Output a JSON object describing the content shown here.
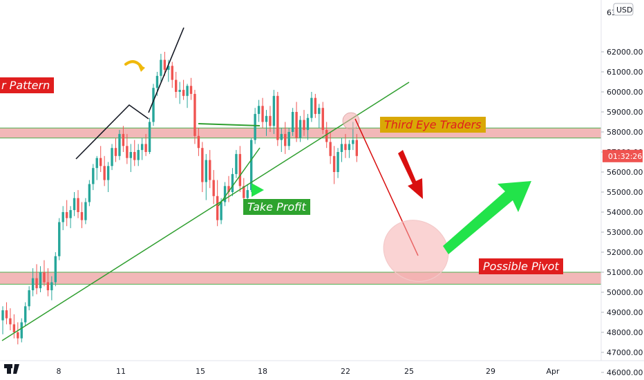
{
  "chart_data": {
    "type": "candlestick",
    "currency_badge": "USD",
    "price_axis": {
      "range": [
        45600,
        63500
      ],
      "ticks": [
        46000,
        47000,
        48000,
        49000,
        50000,
        51000,
        52000,
        53000,
        54000,
        55000,
        56000,
        57000,
        58000,
        59000,
        60000,
        61000,
        62000
      ],
      "tick_labels": [
        "46000.00",
        "47000.00",
        "48000.00",
        "49000.00",
        "50000.00",
        "51000.00",
        "52000.00",
        "53000.00",
        "54000.00",
        "55000.00",
        "56000.00",
        "57000.00",
        "58000.00",
        "59000.00",
        "60000.00",
        "61000.00",
        "62000.00"
      ],
      "top_partial_label": "63",
      "current_price_countdown": "01:32:26",
      "current_price": 56800
    },
    "time_axis": {
      "tick_labels": [
        "8",
        "11",
        "15",
        "18",
        "22",
        "25",
        "29",
        "Apr"
      ]
    },
    "colors": {
      "up": "#26a69a",
      "down": "#ef5350",
      "zone_fill": "#f2b8b8",
      "zone_border": "#4caf50",
      "trendline": "#2e9e2e",
      "label_red": "#e01e1e",
      "label_gold": "#d9a806",
      "label_green": "#2ea32e",
      "arrow_green": "#22e34a",
      "arrow_red": "#d90f0f"
    },
    "zones": [
      {
        "name": "resistance-zone",
        "low": 57700,
        "high": 58200
      },
      {
        "name": "support-zone",
        "low": 50400,
        "high": 51000
      }
    ],
    "annotations": {
      "pattern_label": "r Pattern",
      "brand_label": "Third Eye Traders",
      "take_profit_label": "Take Profit",
      "pivot_label": "Possible Pivot"
    },
    "candles": [
      {
        "o": 48600,
        "h": 49300,
        "l": 47900,
        "c": 49100
      },
      {
        "o": 49100,
        "h": 49500,
        "l": 48400,
        "c": 48700
      },
      {
        "o": 48700,
        "h": 49200,
        "l": 48100,
        "c": 48400
      },
      {
        "o": 48400,
        "h": 48900,
        "l": 47700,
        "c": 48000
      },
      {
        "o": 48000,
        "h": 48500,
        "l": 47400,
        "c": 47700
      },
      {
        "o": 47700,
        "h": 48700,
        "l": 47500,
        "c": 48500
      },
      {
        "o": 48500,
        "h": 49500,
        "l": 48300,
        "c": 49300
      },
      {
        "o": 49300,
        "h": 50300,
        "l": 49100,
        "c": 50100
      },
      {
        "o": 50100,
        "h": 51200,
        "l": 49800,
        "c": 50700
      },
      {
        "o": 50700,
        "h": 51400,
        "l": 49900,
        "c": 50200
      },
      {
        "o": 50200,
        "h": 51300,
        "l": 50000,
        "c": 51000
      },
      {
        "o": 51000,
        "h": 51600,
        "l": 50300,
        "c": 50500
      },
      {
        "o": 50500,
        "h": 51200,
        "l": 49800,
        "c": 50100
      },
      {
        "o": 50100,
        "h": 50800,
        "l": 49600,
        "c": 50500
      },
      {
        "o": 50500,
        "h": 52000,
        "l": 50300,
        "c": 51800
      },
      {
        "o": 51800,
        "h": 53700,
        "l": 51600,
        "c": 53500
      },
      {
        "o": 53500,
        "h": 54300,
        "l": 53100,
        "c": 54000
      },
      {
        "o": 54000,
        "h": 54600,
        "l": 53300,
        "c": 53700
      },
      {
        "o": 53700,
        "h": 54300,
        "l": 53200,
        "c": 54100
      },
      {
        "o": 54100,
        "h": 55000,
        "l": 53800,
        "c": 54700
      },
      {
        "o": 54700,
        "h": 55100,
        "l": 53700,
        "c": 54000
      },
      {
        "o": 54000,
        "h": 54500,
        "l": 53200,
        "c": 53600
      },
      {
        "o": 53600,
        "h": 54700,
        "l": 53400,
        "c": 54500
      },
      {
        "o": 54500,
        "h": 55600,
        "l": 54300,
        "c": 55400
      },
      {
        "o": 55400,
        "h": 56400,
        "l": 55100,
        "c": 56200
      },
      {
        "o": 56200,
        "h": 56800,
        "l": 55600,
        "c": 56700
      },
      {
        "o": 56700,
        "h": 57300,
        "l": 56000,
        "c": 56300
      },
      {
        "o": 56300,
        "h": 56800,
        "l": 55300,
        "c": 55600
      },
      {
        "o": 55600,
        "h": 56500,
        "l": 55000,
        "c": 56300
      },
      {
        "o": 56300,
        "h": 57400,
        "l": 56100,
        "c": 57200
      },
      {
        "o": 57200,
        "h": 57700,
        "l": 56500,
        "c": 56800
      },
      {
        "o": 56800,
        "h": 58100,
        "l": 56600,
        "c": 57900
      },
      {
        "o": 57900,
        "h": 58300,
        "l": 57000,
        "c": 57300
      },
      {
        "o": 57300,
        "h": 57900,
        "l": 56400,
        "c": 56700
      },
      {
        "o": 56700,
        "h": 57400,
        "l": 56000,
        "c": 57000
      },
      {
        "o": 57000,
        "h": 57600,
        "l": 56300,
        "c": 56600
      },
      {
        "o": 56600,
        "h": 57400,
        "l": 56300,
        "c": 57100
      },
      {
        "o": 57100,
        "h": 57700,
        "l": 56600,
        "c": 57400
      },
      {
        "o": 57400,
        "h": 57900,
        "l": 56800,
        "c": 57000
      },
      {
        "o": 57000,
        "h": 58700,
        "l": 56900,
        "c": 58500
      },
      {
        "o": 58500,
        "h": 60400,
        "l": 58300,
        "c": 60200
      },
      {
        "o": 60200,
        "h": 61000,
        "l": 59800,
        "c": 60800
      },
      {
        "o": 60800,
        "h": 61900,
        "l": 60500,
        "c": 61600
      },
      {
        "o": 61600,
        "h": 62000,
        "l": 60800,
        "c": 61100
      },
      {
        "o": 61100,
        "h": 61600,
        "l": 60500,
        "c": 61300
      },
      {
        "o": 61300,
        "h": 61500,
        "l": 60200,
        "c": 60600
      },
      {
        "o": 60600,
        "h": 61000,
        "l": 59700,
        "c": 60000
      },
      {
        "o": 60000,
        "h": 60500,
        "l": 59400,
        "c": 60100
      },
      {
        "o": 60100,
        "h": 60600,
        "l": 59600,
        "c": 59800
      },
      {
        "o": 59800,
        "h": 60400,
        "l": 59200,
        "c": 60300
      },
      {
        "o": 60300,
        "h": 60700,
        "l": 59600,
        "c": 59900
      },
      {
        "o": 59900,
        "h": 60100,
        "l": 57400,
        "c": 57800
      },
      {
        "o": 57800,
        "h": 58200,
        "l": 56800,
        "c": 57200
      },
      {
        "o": 57200,
        "h": 57500,
        "l": 55000,
        "c": 55500
      },
      {
        "o": 55500,
        "h": 56900,
        "l": 54600,
        "c": 56600
      },
      {
        "o": 56600,
        "h": 57100,
        "l": 55200,
        "c": 55600
      },
      {
        "o": 55600,
        "h": 56100,
        "l": 54400,
        "c": 54800
      },
      {
        "o": 54800,
        "h": 55600,
        "l": 53300,
        "c": 53600
      },
      {
        "o": 53600,
        "h": 54700,
        "l": 53400,
        "c": 54500
      },
      {
        "o": 54500,
        "h": 55500,
        "l": 54300,
        "c": 55300
      },
      {
        "o": 55300,
        "h": 55800,
        "l": 54500,
        "c": 55000
      },
      {
        "o": 55000,
        "h": 56200,
        "l": 54800,
        "c": 55900
      },
      {
        "o": 55900,
        "h": 57100,
        "l": 55700,
        "c": 56900
      },
      {
        "o": 56900,
        "h": 57300,
        "l": 55000,
        "c": 55300
      },
      {
        "o": 55300,
        "h": 55700,
        "l": 54300,
        "c": 54700
      },
      {
        "o": 54700,
        "h": 55400,
        "l": 54200,
        "c": 55100
      },
      {
        "o": 55100,
        "h": 57700,
        "l": 55000,
        "c": 57600
      },
      {
        "o": 57600,
        "h": 59200,
        "l": 57400,
        "c": 58900
      },
      {
        "o": 58900,
        "h": 59600,
        "l": 58500,
        "c": 59300
      },
      {
        "o": 59300,
        "h": 59700,
        "l": 58200,
        "c": 58500
      },
      {
        "o": 58500,
        "h": 59100,
        "l": 57800,
        "c": 58800
      },
      {
        "o": 58800,
        "h": 59300,
        "l": 58000,
        "c": 58300
      },
      {
        "o": 58300,
        "h": 60100,
        "l": 57900,
        "c": 59800
      },
      {
        "o": 59800,
        "h": 60000,
        "l": 57300,
        "c": 57600
      },
      {
        "o": 57600,
        "h": 58200,
        "l": 57000,
        "c": 57900
      },
      {
        "o": 57900,
        "h": 58500,
        "l": 56900,
        "c": 57300
      },
      {
        "o": 57300,
        "h": 58200,
        "l": 57100,
        "c": 58000
      },
      {
        "o": 58000,
        "h": 59200,
        "l": 57800,
        "c": 59000
      },
      {
        "o": 59000,
        "h": 59500,
        "l": 57500,
        "c": 57700
      },
      {
        "o": 57700,
        "h": 58800,
        "l": 57500,
        "c": 58600
      },
      {
        "o": 58600,
        "h": 59100,
        "l": 57800,
        "c": 58100
      },
      {
        "o": 58100,
        "h": 58900,
        "l": 57600,
        "c": 58700
      },
      {
        "o": 58700,
        "h": 60000,
        "l": 58500,
        "c": 59700
      },
      {
        "o": 59700,
        "h": 59900,
        "l": 58700,
        "c": 58900
      },
      {
        "o": 58900,
        "h": 59400,
        "l": 58200,
        "c": 59200
      },
      {
        "o": 59200,
        "h": 59500,
        "l": 57900,
        "c": 58100
      },
      {
        "o": 58100,
        "h": 58500,
        "l": 57200,
        "c": 57500
      },
      {
        "o": 57500,
        "h": 58000,
        "l": 56400,
        "c": 56800
      },
      {
        "o": 56800,
        "h": 57300,
        "l": 55400,
        "c": 56000
      },
      {
        "o": 56000,
        "h": 57200,
        "l": 55700,
        "c": 57000
      },
      {
        "o": 57000,
        "h": 57700,
        "l": 56500,
        "c": 57400
      },
      {
        "o": 57400,
        "h": 57900,
        "l": 56700,
        "c": 57100
      },
      {
        "o": 57100,
        "h": 57600,
        "l": 56700,
        "c": 57400
      },
      {
        "o": 57400,
        "h": 58500,
        "l": 57100,
        "c": 57600
      },
      {
        "o": 57600,
        "h": 57900,
        "l": 56500,
        "c": 56800
      }
    ]
  }
}
